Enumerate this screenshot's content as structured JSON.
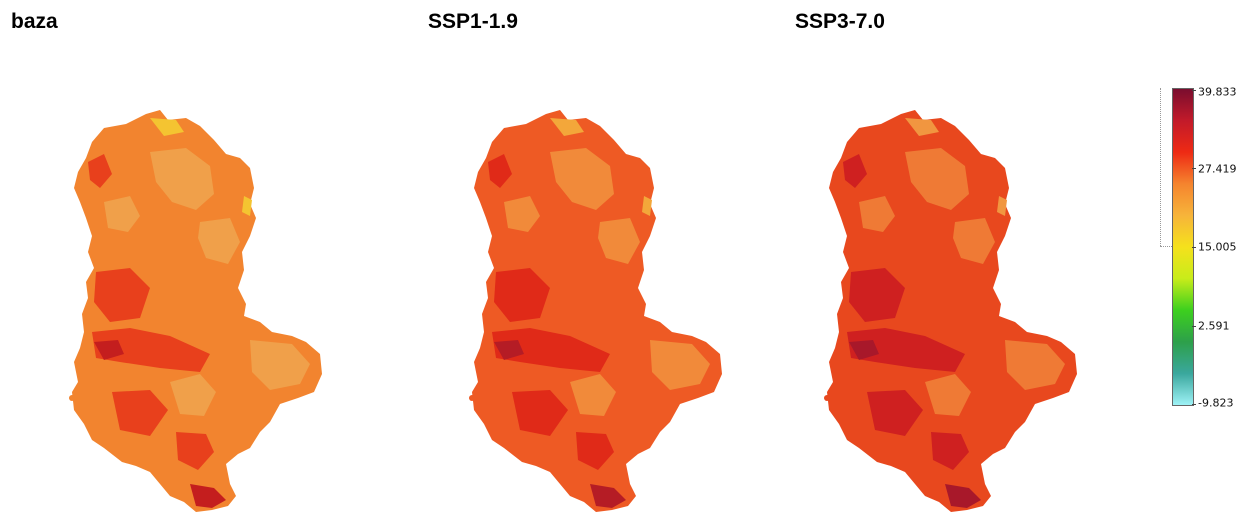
{
  "panels": [
    {
      "title": "baza",
      "palette": {
        "base": "#f2842f",
        "ridge": "#f0a04a",
        "valley": "#e8401c",
        "hot": "#c41e1e",
        "cool": "#f4c431"
      }
    },
    {
      "title": "SSP1-1.9",
      "palette": {
        "base": "#ee5a24",
        "ridge": "#f18a3a",
        "valley": "#e02a18",
        "hot": "#b51c25",
        "cool": "#f3a73a"
      }
    },
    {
      "title": "SSP3-7.0",
      "palette": {
        "base": "#e8481e",
        "ridge": "#ef7a35",
        "valley": "#cf2020",
        "hot": "#a8182a",
        "cool": "#f19640"
      }
    }
  ],
  "legend": {
    "labels": [
      "39.833",
      "27.419",
      "15.005",
      "2.591",
      "-9.823"
    ],
    "stops": [
      "#7a0d2e",
      "#c21a2a",
      "#ee2a14",
      "#f5842e",
      "#f7b43a",
      "#f5e11c",
      "#c8ec1a",
      "#3dd01e",
      "#2da04a",
      "#3aa79d",
      "#9ef2f6"
    ]
  }
}
